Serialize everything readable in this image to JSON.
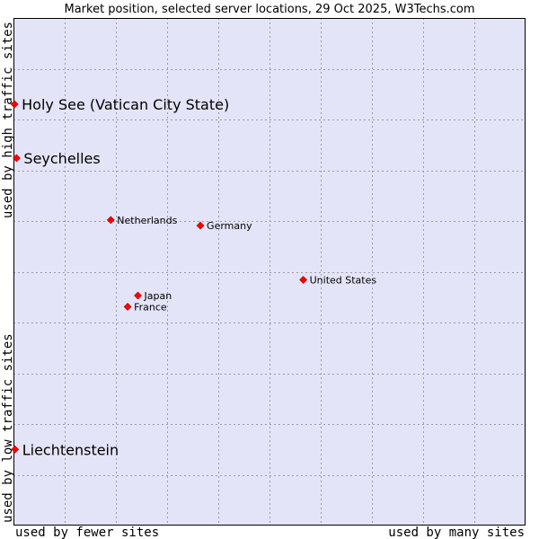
{
  "chart_data": {
    "type": "scatter",
    "title": "Market position, selected server locations, 29 Oct 2025, W3Techs.com",
    "xlabel_left": "used by fewer sites",
    "xlabel_right": "used by many sites",
    "ylabel_top": "used by high traffic sites",
    "ylabel_bottom": "used by low traffic sites",
    "xlim": [
      0,
      100
    ],
    "ylim": [
      0,
      100
    ],
    "grid": true,
    "point_color": "#ff0000",
    "plot_background": "#e4e4f8",
    "points": [
      {
        "label": "Holy See (Vatican City State)",
        "x": 0.2,
        "y": 83.0,
        "highlight": true
      },
      {
        "label": "Seychelles",
        "x": 0.6,
        "y": 72.4,
        "highlight": true
      },
      {
        "label": "Netherlands",
        "x": 19.0,
        "y": 60.2,
        "highlight": false
      },
      {
        "label": "Germany",
        "x": 36.5,
        "y": 59.1,
        "highlight": false
      },
      {
        "label": "United States",
        "x": 56.6,
        "y": 48.4,
        "highlight": false
      },
      {
        "label": "Japan",
        "x": 24.3,
        "y": 45.3,
        "highlight": false
      },
      {
        "label": "France",
        "x": 22.3,
        "y": 43.1,
        "highlight": false
      },
      {
        "label": "Liechtenstein",
        "x": 0.3,
        "y": 15.0,
        "highlight": true
      }
    ]
  }
}
